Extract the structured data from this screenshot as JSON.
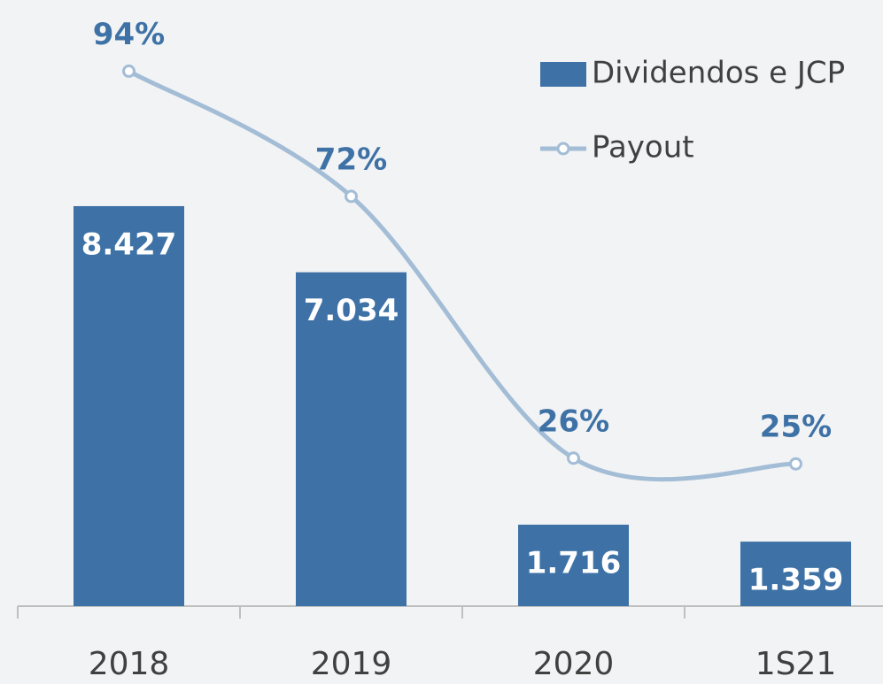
{
  "chart_data": {
    "type": "bar",
    "categories": [
      "2018",
      "2019",
      "2020",
      "1S21"
    ],
    "series": [
      {
        "name": "Dividendos e JCP",
        "type": "bar",
        "color": "#3e72a6",
        "values": [
          8.427,
          7.034,
          1.716,
          1.359
        ]
      },
      {
        "name": "Payout",
        "type": "line",
        "axis": "y2",
        "color": "#a3bdd6",
        "values": [
          94,
          72,
          26,
          25
        ],
        "value_labels": [
          "94%",
          "72%",
          "26%",
          "25%"
        ]
      }
    ],
    "ylim": [
      0,
      12.77
    ],
    "y2lim": [
      0,
      106.5
    ],
    "legend": "upper right",
    "grid": false
  }
}
